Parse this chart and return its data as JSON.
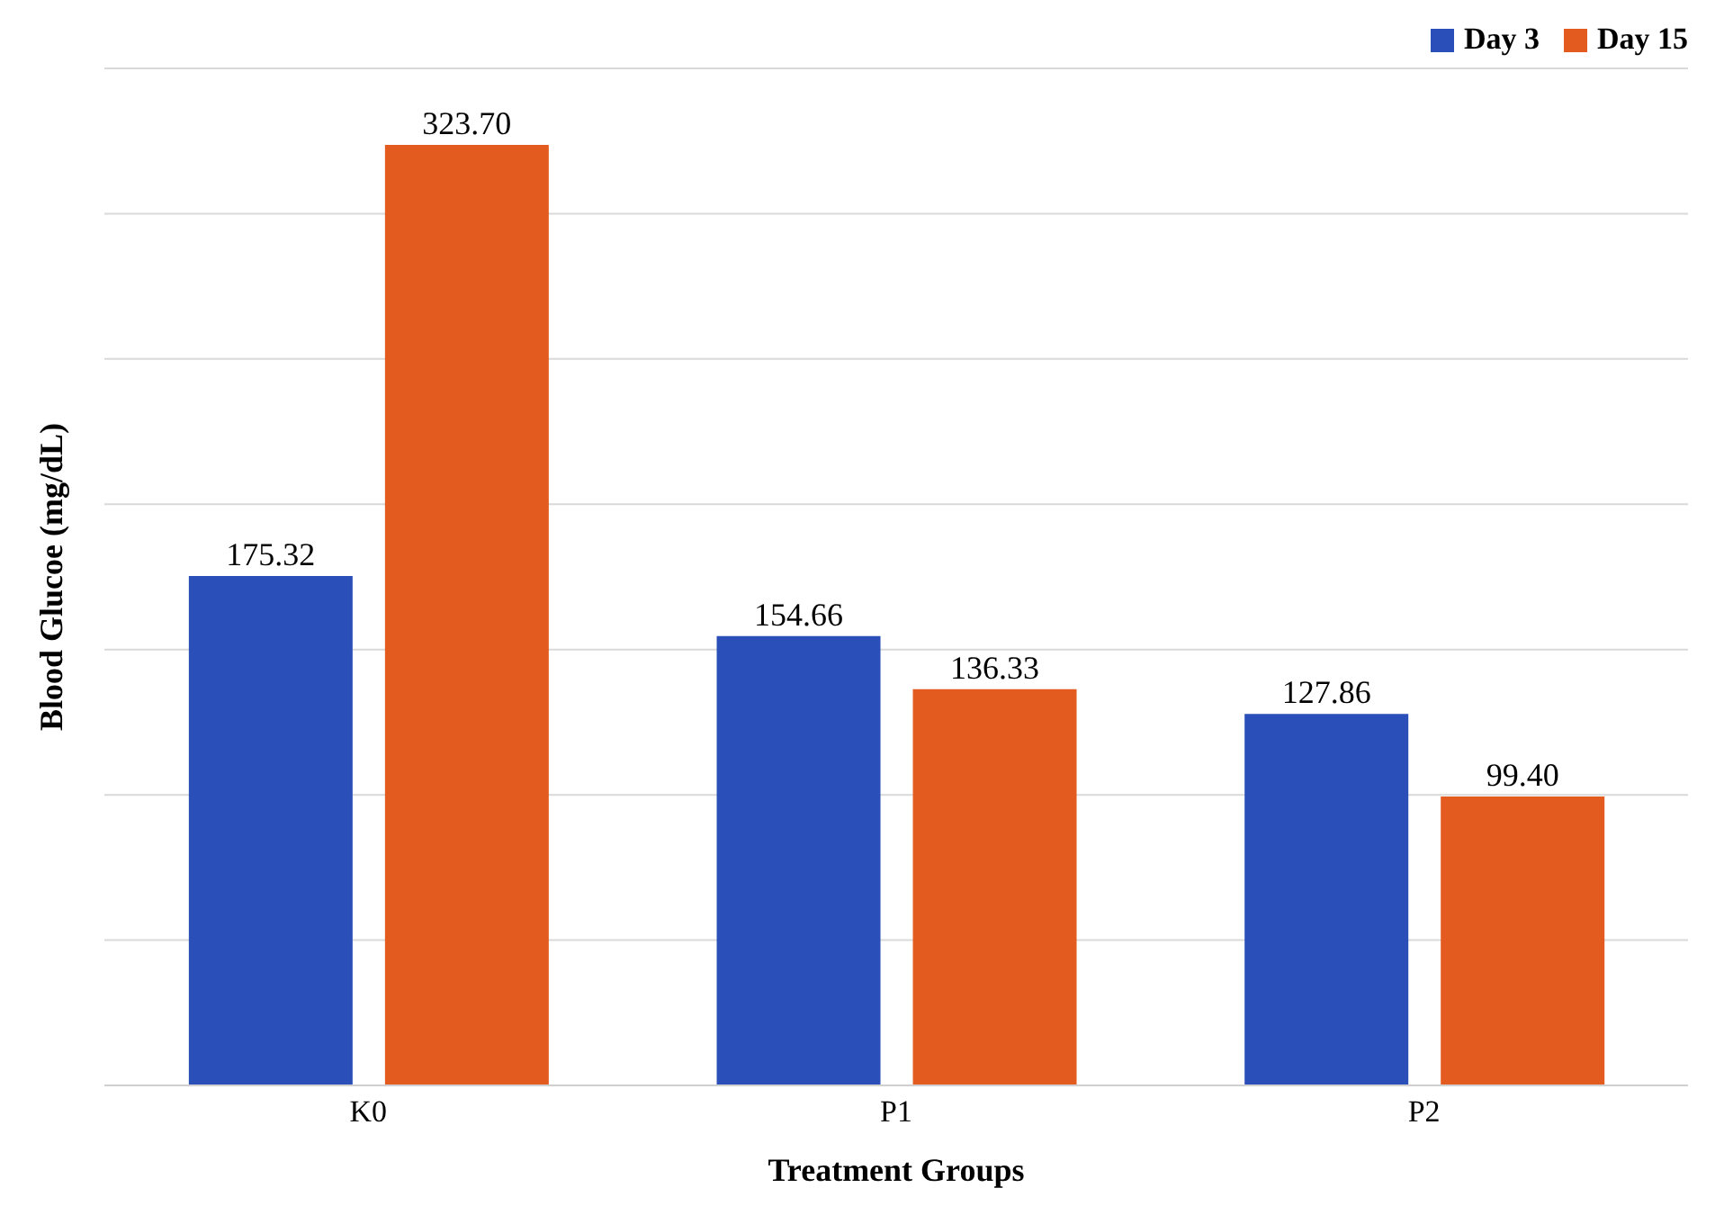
{
  "chart_data": {
    "type": "bar",
    "xlabel": "Treatment Groups",
    "ylabel": "Blood Glucoe (mg/dL)",
    "categories": [
      "K0",
      "P1",
      "P2"
    ],
    "series": [
      {
        "name": "Day 3",
        "color": "#2b4fb8",
        "values": [
          175.32,
          154.66,
          127.86
        ],
        "value_labels": [
          "175.32",
          "154.66",
          "127.86"
        ]
      },
      {
        "name": "Day 15",
        "color": "#e35b1f",
        "values": [
          323.7,
          136.33,
          99.4
        ],
        "value_labels": [
          "323.70",
          "136.33",
          "99.40"
        ]
      }
    ],
    "ylim": [
      0,
      350
    ],
    "yticks": [
      {
        "value": 0,
        "label": null
      },
      {
        "value": 50,
        "label": null
      },
      {
        "value": 100,
        "label": null
      },
      {
        "value": 150,
        "label": null
      },
      {
        "value": 200,
        "label": null
      },
      {
        "value": 250,
        "label": null
      },
      {
        "value": 300,
        "label": null
      },
      {
        "value": 350,
        "label": null
      }
    ],
    "tick_labels": "x",
    "grid": "y",
    "legend": "top right"
  }
}
